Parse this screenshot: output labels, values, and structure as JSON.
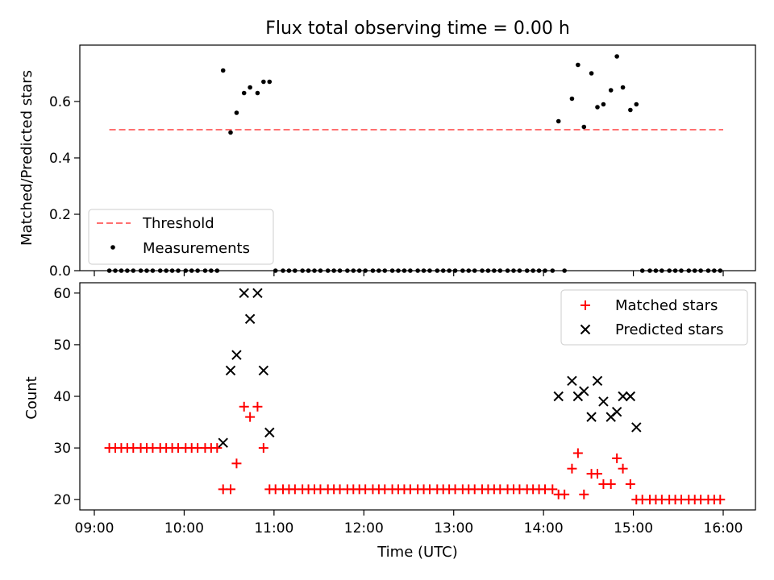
{
  "title": "Flux total observing time = 0.00 h",
  "x_ticks": [
    "09:00",
    "10:00",
    "11:00",
    "12:00",
    "13:00",
    "14:00",
    "15:00",
    "16:00"
  ],
  "colors": {
    "threshold": "#ff7070",
    "measurements": "#000000",
    "matched": "#ff0000",
    "predicted": "#000000"
  },
  "chart_data": [
    {
      "type": "scatter",
      "title": "Flux total observing time = 0.00 h",
      "xlabel": "",
      "ylabel": "Matched/Predicted stars",
      "xlim": [
        "09:00",
        "16:00"
      ],
      "ylim": [
        0,
        0.8
      ],
      "y_ticks": [
        "0.0",
        "0.2",
        "0.4",
        "0.6"
      ],
      "legend_position": "lower-left",
      "threshold": {
        "name": "Threshold",
        "value": 0.5,
        "x_range": [
          "09:10",
          "16:00"
        ]
      },
      "series": [
        {
          "name": "Measurements",
          "points": [
            {
              "x": "09:10",
              "y": 0.0
            },
            {
              "x": "09:14",
              "y": 0.0
            },
            {
              "x": "09:18",
              "y": 0.0
            },
            {
              "x": "09:22",
              "y": 0.0
            },
            {
              "x": "09:26",
              "y": 0.0
            },
            {
              "x": "09:31",
              "y": 0.0
            },
            {
              "x": "09:35",
              "y": 0.0
            },
            {
              "x": "09:39",
              "y": 0.0
            },
            {
              "x": "09:44",
              "y": 0.0
            },
            {
              "x": "09:48",
              "y": 0.0
            },
            {
              "x": "09:52",
              "y": 0.0
            },
            {
              "x": "09:56",
              "y": 0.0
            },
            {
              "x": "10:01",
              "y": 0.0
            },
            {
              "x": "10:05",
              "y": 0.0
            },
            {
              "x": "10:09",
              "y": 0.0
            },
            {
              "x": "10:14",
              "y": 0.0
            },
            {
              "x": "10:18",
              "y": 0.0
            },
            {
              "x": "10:22",
              "y": 0.0
            },
            {
              "x": "10:26",
              "y": 0.71
            },
            {
              "x": "10:31",
              "y": 0.49
            },
            {
              "x": "10:35",
              "y": 0.56
            },
            {
              "x": "10:40",
              "y": 0.63
            },
            {
              "x": "10:44",
              "y": 0.65
            },
            {
              "x": "10:49",
              "y": 0.63
            },
            {
              "x": "10:53",
              "y": 0.67
            },
            {
              "x": "10:57",
              "y": 0.67
            },
            {
              "x": "11:01",
              "y": 0.0
            },
            {
              "x": "11:06",
              "y": 0.0
            },
            {
              "x": "11:10",
              "y": 0.0
            },
            {
              "x": "11:14",
              "y": 0.0
            },
            {
              "x": "11:19",
              "y": 0.0
            },
            {
              "x": "11:23",
              "y": 0.0
            },
            {
              "x": "11:27",
              "y": 0.0
            },
            {
              "x": "11:31",
              "y": 0.0
            },
            {
              "x": "11:36",
              "y": 0.0
            },
            {
              "x": "11:40",
              "y": 0.0
            },
            {
              "x": "11:44",
              "y": 0.0
            },
            {
              "x": "11:49",
              "y": 0.0
            },
            {
              "x": "11:53",
              "y": 0.0
            },
            {
              "x": "11:57",
              "y": 0.0
            },
            {
              "x": "12:01",
              "y": 0.0
            },
            {
              "x": "12:06",
              "y": 0.0
            },
            {
              "x": "12:10",
              "y": 0.0
            },
            {
              "x": "12:14",
              "y": 0.0
            },
            {
              "x": "12:19",
              "y": 0.0
            },
            {
              "x": "12:23",
              "y": 0.0
            },
            {
              "x": "12:27",
              "y": 0.0
            },
            {
              "x": "12:31",
              "y": 0.0
            },
            {
              "x": "12:36",
              "y": 0.0
            },
            {
              "x": "12:40",
              "y": 0.0
            },
            {
              "x": "12:44",
              "y": 0.0
            },
            {
              "x": "12:49",
              "y": 0.0
            },
            {
              "x": "12:53",
              "y": 0.0
            },
            {
              "x": "12:57",
              "y": 0.0
            },
            {
              "x": "13:01",
              "y": 0.0
            },
            {
              "x": "13:06",
              "y": 0.0
            },
            {
              "x": "13:10",
              "y": 0.0
            },
            {
              "x": "13:14",
              "y": 0.0
            },
            {
              "x": "13:19",
              "y": 0.0
            },
            {
              "x": "13:23",
              "y": 0.0
            },
            {
              "x": "13:27",
              "y": 0.0
            },
            {
              "x": "13:31",
              "y": 0.0
            },
            {
              "x": "13:36",
              "y": 0.0
            },
            {
              "x": "13:40",
              "y": 0.0
            },
            {
              "x": "13:44",
              "y": 0.0
            },
            {
              "x": "13:49",
              "y": 0.0
            },
            {
              "x": "13:53",
              "y": 0.0
            },
            {
              "x": "13:57",
              "y": 0.0
            },
            {
              "x": "14:01",
              "y": 0.0
            },
            {
              "x": "14:06",
              "y": 0.0
            },
            {
              "x": "14:10",
              "y": 0.53
            },
            {
              "x": "14:14",
              "y": 0.0
            },
            {
              "x": "14:19",
              "y": 0.61
            },
            {
              "x": "14:23",
              "y": 0.73
            },
            {
              "x": "14:27",
              "y": 0.51
            },
            {
              "x": "14:32",
              "y": 0.7
            },
            {
              "x": "14:36",
              "y": 0.58
            },
            {
              "x": "14:40",
              "y": 0.59
            },
            {
              "x": "14:45",
              "y": 0.64
            },
            {
              "x": "14:49",
              "y": 0.76
            },
            {
              "x": "14:53",
              "y": 0.65
            },
            {
              "x": "14:58",
              "y": 0.57
            },
            {
              "x": "15:02",
              "y": 0.59
            },
            {
              "x": "15:06",
              "y": 0.0
            },
            {
              "x": "15:11",
              "y": 0.0
            },
            {
              "x": "15:15",
              "y": 0.0
            },
            {
              "x": "15:19",
              "y": 0.0
            },
            {
              "x": "15:24",
              "y": 0.0
            },
            {
              "x": "15:28",
              "y": 0.0
            },
            {
              "x": "15:32",
              "y": 0.0
            },
            {
              "x": "15:37",
              "y": 0.0
            },
            {
              "x": "15:41",
              "y": 0.0
            },
            {
              "x": "15:45",
              "y": 0.0
            },
            {
              "x": "15:50",
              "y": 0.0
            },
            {
              "x": "15:54",
              "y": 0.0
            },
            {
              "x": "15:58",
              "y": 0.0
            }
          ]
        }
      ]
    },
    {
      "type": "scatter",
      "title": "",
      "xlabel": "Time (UTC)",
      "ylabel": "Count",
      "xlim": [
        "09:00",
        "16:00"
      ],
      "ylim": [
        18,
        62
      ],
      "y_ticks": [
        "20",
        "30",
        "40",
        "50",
        "60"
      ],
      "legend_position": "upper-right",
      "series": [
        {
          "name": "Matched stars",
          "marker": "plus",
          "points": [
            {
              "x": "09:10",
              "y": 30
            },
            {
              "x": "09:14",
              "y": 30
            },
            {
              "x": "09:18",
              "y": 30
            },
            {
              "x": "09:22",
              "y": 30
            },
            {
              "x": "09:26",
              "y": 30
            },
            {
              "x": "09:31",
              "y": 30
            },
            {
              "x": "09:35",
              "y": 30
            },
            {
              "x": "09:39",
              "y": 30
            },
            {
              "x": "09:44",
              "y": 30
            },
            {
              "x": "09:48",
              "y": 30
            },
            {
              "x": "09:52",
              "y": 30
            },
            {
              "x": "09:56",
              "y": 30
            },
            {
              "x": "10:01",
              "y": 30
            },
            {
              "x": "10:05",
              "y": 30
            },
            {
              "x": "10:09",
              "y": 30
            },
            {
              "x": "10:14",
              "y": 30
            },
            {
              "x": "10:18",
              "y": 30
            },
            {
              "x": "10:22",
              "y": 30
            },
            {
              "x": "10:26",
              "y": 22
            },
            {
              "x": "10:31",
              "y": 22
            },
            {
              "x": "10:35",
              "y": 27
            },
            {
              "x": "10:40",
              "y": 38
            },
            {
              "x": "10:44",
              "y": 36
            },
            {
              "x": "10:49",
              "y": 38
            },
            {
              "x": "10:53",
              "y": 30
            },
            {
              "x": "10:57",
              "y": 22
            },
            {
              "x": "11:01",
              "y": 22
            },
            {
              "x": "11:06",
              "y": 22
            },
            {
              "x": "11:10",
              "y": 22
            },
            {
              "x": "11:14",
              "y": 22
            },
            {
              "x": "11:19",
              "y": 22
            },
            {
              "x": "11:23",
              "y": 22
            },
            {
              "x": "11:27",
              "y": 22
            },
            {
              "x": "11:31",
              "y": 22
            },
            {
              "x": "11:36",
              "y": 22
            },
            {
              "x": "11:40",
              "y": 22
            },
            {
              "x": "11:44",
              "y": 22
            },
            {
              "x": "11:49",
              "y": 22
            },
            {
              "x": "11:53",
              "y": 22
            },
            {
              "x": "11:57",
              "y": 22
            },
            {
              "x": "12:01",
              "y": 22
            },
            {
              "x": "12:06",
              "y": 22
            },
            {
              "x": "12:10",
              "y": 22
            },
            {
              "x": "12:14",
              "y": 22
            },
            {
              "x": "12:19",
              "y": 22
            },
            {
              "x": "12:23",
              "y": 22
            },
            {
              "x": "12:27",
              "y": 22
            },
            {
              "x": "12:31",
              "y": 22
            },
            {
              "x": "12:36",
              "y": 22
            },
            {
              "x": "12:40",
              "y": 22
            },
            {
              "x": "12:44",
              "y": 22
            },
            {
              "x": "12:49",
              "y": 22
            },
            {
              "x": "12:53",
              "y": 22
            },
            {
              "x": "12:57",
              "y": 22
            },
            {
              "x": "13:01",
              "y": 22
            },
            {
              "x": "13:06",
              "y": 22
            },
            {
              "x": "13:10",
              "y": 22
            },
            {
              "x": "13:14",
              "y": 22
            },
            {
              "x": "13:19",
              "y": 22
            },
            {
              "x": "13:23",
              "y": 22
            },
            {
              "x": "13:27",
              "y": 22
            },
            {
              "x": "13:31",
              "y": 22
            },
            {
              "x": "13:36",
              "y": 22
            },
            {
              "x": "13:40",
              "y": 22
            },
            {
              "x": "13:44",
              "y": 22
            },
            {
              "x": "13:49",
              "y": 22
            },
            {
              "x": "13:53",
              "y": 22
            },
            {
              "x": "13:57",
              "y": 22
            },
            {
              "x": "14:01",
              "y": 22
            },
            {
              "x": "14:06",
              "y": 22
            },
            {
              "x": "14:10",
              "y": 21
            },
            {
              "x": "14:14",
              "y": 21
            },
            {
              "x": "14:19",
              "y": 26
            },
            {
              "x": "14:23",
              "y": 29
            },
            {
              "x": "14:27",
              "y": 21
            },
            {
              "x": "14:32",
              "y": 25
            },
            {
              "x": "14:36",
              "y": 25
            },
            {
              "x": "14:40",
              "y": 23
            },
            {
              "x": "14:45",
              "y": 23
            },
            {
              "x": "14:49",
              "y": 28
            },
            {
              "x": "14:53",
              "y": 26
            },
            {
              "x": "14:58",
              "y": 23
            },
            {
              "x": "15:02",
              "y": 20
            },
            {
              "x": "15:06",
              "y": 20
            },
            {
              "x": "15:11",
              "y": 20
            },
            {
              "x": "15:15",
              "y": 20
            },
            {
              "x": "15:19",
              "y": 20
            },
            {
              "x": "15:24",
              "y": 20
            },
            {
              "x": "15:28",
              "y": 20
            },
            {
              "x": "15:32",
              "y": 20
            },
            {
              "x": "15:37",
              "y": 20
            },
            {
              "x": "15:41",
              "y": 20
            },
            {
              "x": "15:45",
              "y": 20
            },
            {
              "x": "15:50",
              "y": 20
            },
            {
              "x": "15:54",
              "y": 20
            },
            {
              "x": "15:58",
              "y": 20
            }
          ]
        },
        {
          "name": "Predicted stars",
          "marker": "x",
          "points": [
            {
              "x": "10:26",
              "y": 31
            },
            {
              "x": "10:31",
              "y": 45
            },
            {
              "x": "10:35",
              "y": 48
            },
            {
              "x": "10:40",
              "y": 60
            },
            {
              "x": "10:44",
              "y": 55
            },
            {
              "x": "10:49",
              "y": 60
            },
            {
              "x": "10:53",
              "y": 45
            },
            {
              "x": "10:57",
              "y": 33
            },
            {
              "x": "14:10",
              "y": 40
            },
            {
              "x": "14:19",
              "y": 43
            },
            {
              "x": "14:23",
              "y": 40
            },
            {
              "x": "14:27",
              "y": 41
            },
            {
              "x": "14:32",
              "y": 36
            },
            {
              "x": "14:36",
              "y": 43
            },
            {
              "x": "14:40",
              "y": 39
            },
            {
              "x": "14:45",
              "y": 36
            },
            {
              "x": "14:49",
              "y": 37
            },
            {
              "x": "14:53",
              "y": 40
            },
            {
              "x": "14:58",
              "y": 40
            },
            {
              "x": "15:02",
              "y": 34
            }
          ]
        }
      ]
    }
  ]
}
